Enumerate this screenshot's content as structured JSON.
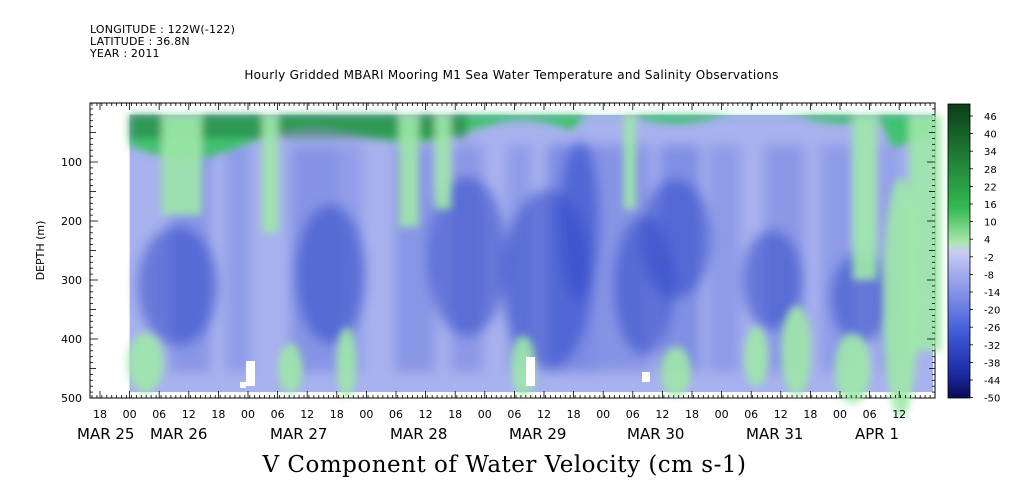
{
  "header": {
    "longitude": "LONGITUDE : 122W(-122)",
    "latitude": "LATITUDE : 36.8N",
    "year": "YEAR : 2011",
    "title": "Hourly Gridded MBARI Mooring M1 Sea Water Temperature and Salinity Observations"
  },
  "footer": {
    "variable_title": "V Component of Water Velocity (cm s-1)"
  },
  "colors": {
    "green_dark": "#1a6b2e",
    "green_mid": "#2fc45a",
    "green_light": "#9fe8a8",
    "blue_light": "#a8b2ee",
    "blue_mid": "#6f80e0",
    "blue_dark": "#2f48c8"
  },
  "chart_data": {
    "type": "heatmap",
    "title": "Hourly Gridded MBARI Mooring M1 Sea Water Temperature and Salinity Observations",
    "ylabel": "DEPTH (m)",
    "xlabel": "",
    "ylim": [
      500,
      0
    ],
    "y_ticks": [
      "100",
      "200",
      "300",
      "400",
      "500"
    ],
    "x_hour_ticks": [
      "18",
      "00",
      "06",
      "12",
      "18",
      "00",
      "06",
      "12",
      "18",
      "00",
      "06",
      "12",
      "18",
      "00",
      "06",
      "12",
      "18",
      "00",
      "06",
      "12",
      "18",
      "00",
      "06",
      "12",
      "18",
      "00",
      "06",
      "12"
    ],
    "x_day_labels": [
      "MAR 25",
      "MAR 26",
      "MAR 27",
      "MAR 28",
      "MAR 29",
      "MAR 30",
      "MAR 31",
      "APR  1"
    ],
    "colorbar": {
      "levels": [
        "46",
        "40",
        "34",
        "28",
        "22",
        "16",
        "10",
        "4",
        "-2",
        "-8",
        "-14",
        "-20",
        "-26",
        "-32",
        "-38",
        "-44",
        "-50"
      ],
      "range": [
        -50,
        50
      ]
    },
    "depth_range": [
      20,
      490
    ],
    "time_range": [
      "2011-03-26 00:00",
      "2011-04-01 19:00"
    ],
    "surface_layer": "positive (green), roughly 0 to 30 cm s-1 in upper 20-80 m",
    "interior": "negative (blue), roughly -2 to -30 cm s-1 below 100 m",
    "grid": false
  }
}
